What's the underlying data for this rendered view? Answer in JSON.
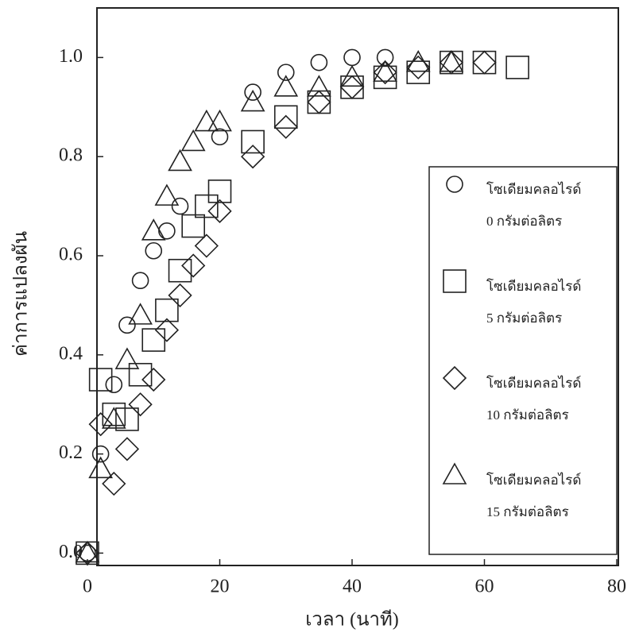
{
  "chart_data": {
    "type": "scatter",
    "x_label": "เวลา (นาที)",
    "y_label": "ค่าการแปลงผัน",
    "xlim": [
      0,
      80
    ],
    "xticks": [
      0,
      20,
      40,
      60,
      80
    ],
    "ylim": [
      -0.025,
      1.1
    ],
    "yticks": [
      {
        "value": 0,
        "label": "0.0"
      },
      0.2,
      0.4,
      0.6,
      0.8,
      {
        "value": 1,
        "label": "1.0"
      }
    ],
    "legend": "right",
    "series": [
      {
        "name": [
          "โซเดียมคลอไรด์",
          "0 กรัมต่อลิตร"
        ],
        "marker": "circle",
        "color": "#222222",
        "x": [
          0,
          2,
          4,
          6,
          8,
          10,
          12,
          14,
          20,
          25,
          30,
          35,
          40,
          45
        ],
        "values": [
          0,
          0.2,
          0.34,
          0.46,
          0.55,
          0.61,
          0.65,
          0.7,
          0.84,
          0.93,
          0.97,
          0.99,
          1.0,
          1.0
        ]
      },
      {
        "name": [
          "โซเดียมคลอไรด์",
          "5 กรัมต่อลิตร"
        ],
        "marker": "square",
        "color": "#222222",
        "x": [
          0,
          2,
          4,
          6,
          8,
          10,
          12,
          14,
          16,
          18,
          20,
          25,
          30,
          35,
          40,
          45,
          50,
          55,
          60,
          65
        ],
        "values": [
          0,
          0.35,
          0.28,
          0.27,
          0.36,
          0.43,
          0.49,
          0.57,
          0.66,
          0.7,
          0.73,
          0.83,
          0.88,
          0.91,
          0.94,
          0.96,
          0.97,
          0.99,
          0.99,
          0.98
        ]
      },
      {
        "name": [
          "โซเดียมคลอไรด์",
          "10 กรัมต่อลิตร"
        ],
        "marker": "diamond",
        "color": "#222222",
        "x": [
          0,
          2,
          4,
          6,
          8,
          10,
          12,
          14,
          16,
          18,
          20,
          25,
          30,
          35,
          40,
          45,
          50,
          55,
          60
        ],
        "values": [
          0,
          0.26,
          0.14,
          0.21,
          0.3,
          0.35,
          0.45,
          0.52,
          0.58,
          0.62,
          0.69,
          0.8,
          0.86,
          0.91,
          0.94,
          0.97,
          0.98,
          0.99,
          0.99
        ]
      },
      {
        "name": [
          "โซเดียมคลอไรด์",
          "15 กรัมต่อลิตร"
        ],
        "marker": "triangle",
        "color": "#222222",
        "x": [
          0,
          2,
          4,
          6,
          8,
          10,
          12,
          14,
          16,
          18,
          20,
          25,
          30,
          35,
          40,
          45,
          50,
          55
        ],
        "values": [
          0,
          0.17,
          0.27,
          0.39,
          0.48,
          0.65,
          0.72,
          0.79,
          0.83,
          0.87,
          0.87,
          0.91,
          0.94,
          0.94,
          0.96,
          0.97,
          0.99,
          0.99
        ]
      }
    ]
  }
}
